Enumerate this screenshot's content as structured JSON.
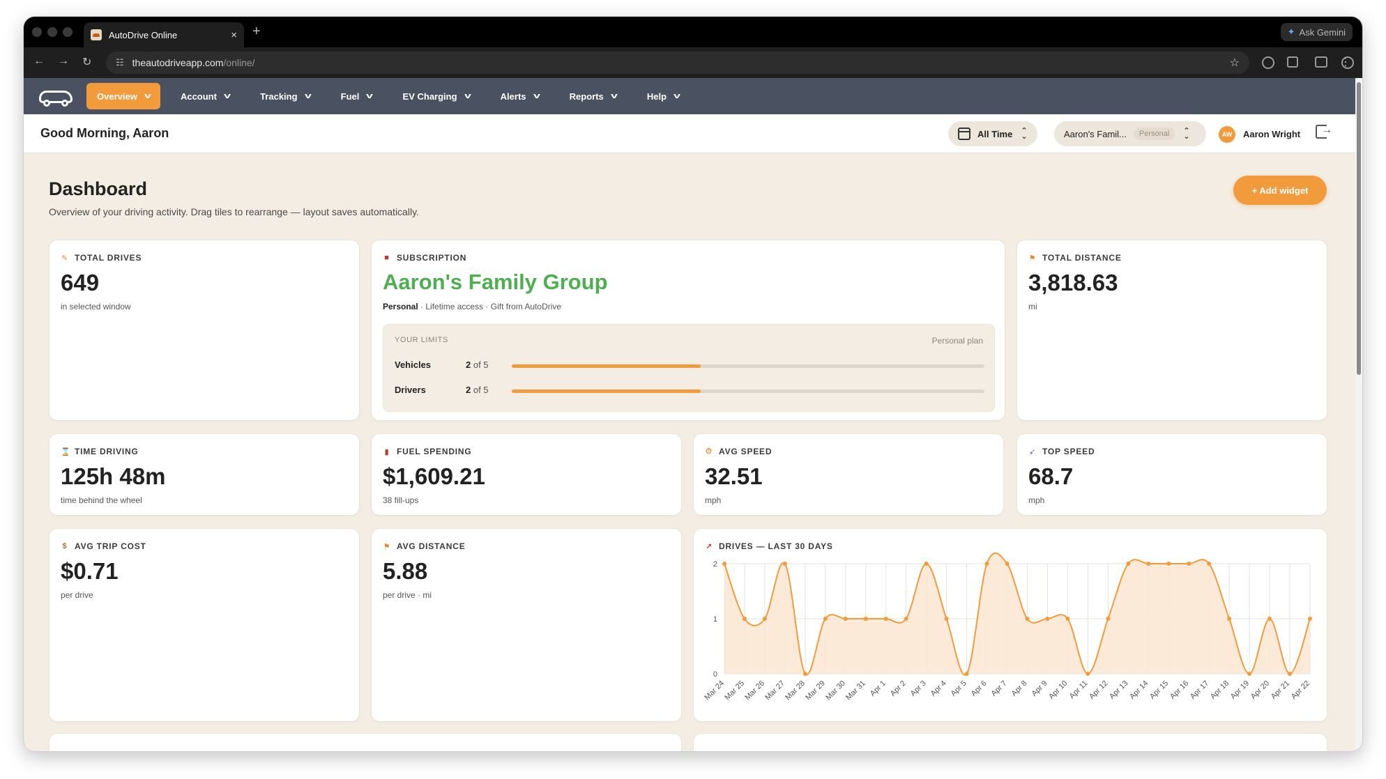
{
  "browser": {
    "tab_title": "AutoDrive Online",
    "tab_close": "×",
    "new_tab": "+",
    "gemini_label": "Ask Gemini",
    "url_host": "theautodriveapp.com",
    "url_path": "/online/"
  },
  "nav": {
    "items": [
      {
        "label": "Overview",
        "active": true
      },
      {
        "label": "Account"
      },
      {
        "label": "Tracking"
      },
      {
        "label": "Fuel"
      },
      {
        "label": "EV Charging"
      },
      {
        "label": "Alerts"
      },
      {
        "label": "Reports"
      },
      {
        "label": "Help"
      }
    ]
  },
  "header": {
    "greeting": "Good Morning, Aaron",
    "range": "All Time",
    "group": "Aaron's Famil...",
    "group_badge": "Personal",
    "avatar_initials": "AW",
    "user_name": "Aaron Wright"
  },
  "page": {
    "title": "Dashboard",
    "description": "Overview of your driving activity. Drag tiles to rearrange — layout saves automatically.",
    "add_widget": "+ Add widget"
  },
  "cards": {
    "total_drives": {
      "label": "TOTAL DRIVES",
      "icon": "🚗",
      "value": "649",
      "sub": "in selected window"
    },
    "subscription": {
      "label": "SUBSCRIPTION",
      "icon": "🎁",
      "name": "Aaron's Family Group",
      "plan": "Personal",
      "detail": " · Lifetime access · Gift from AutoDrive",
      "limits_heading": "YOUR LIMITS",
      "limits_plan": "Personal plan",
      "limits": [
        {
          "name": "Vehicles",
          "used": "2",
          "of_text": " of 5",
          "fraction": 0.4
        },
        {
          "name": "Drivers",
          "used": "2",
          "of_text": " of 5",
          "fraction": 0.4
        }
      ]
    },
    "total_distance": {
      "label": "TOTAL DISTANCE",
      "icon": "⚑",
      "value": "3,818.63",
      "sub": "mi"
    },
    "time_driving": {
      "label": "TIME DRIVING",
      "icon": "⌛",
      "value": "125h 48m",
      "sub": "time behind the wheel"
    },
    "fuel_spending": {
      "label": "FUEL SPENDING",
      "icon": "⛽",
      "value": "$1,609.21",
      "sub": "38 fill-ups"
    },
    "avg_speed": {
      "label": "AVG SPEED",
      "icon": "⏱",
      "value": "32.51",
      "sub": "mph"
    },
    "top_speed": {
      "label": "TOP SPEED",
      "icon": "🚀",
      "value": "68.7",
      "sub": "mph"
    },
    "avg_trip_cost": {
      "label": "AVG TRIP COST",
      "icon": "💰",
      "value": "$0.71",
      "sub": "per drive"
    },
    "avg_distance": {
      "label": "AVG DISTANCE",
      "icon": "⚑",
      "value": "5.88",
      "sub": "per drive · mi"
    },
    "drives_chart": {
      "label": "DRIVES — LAST 30 DAYS",
      "icon": "📈"
    }
  },
  "chart_data": {
    "type": "area",
    "title": "DRIVES — LAST 30 DAYS",
    "x": [
      "Mar 24",
      "Mar 25",
      "Mar 26",
      "Mar 27",
      "Mar 28",
      "Mar 29",
      "Mar 30",
      "Mar 31",
      "Apr 1",
      "Apr 2",
      "Apr 3",
      "Apr 4",
      "Apr 5",
      "Apr 6",
      "Apr 7",
      "Apr 8",
      "Apr 9",
      "Apr 10",
      "Apr 11",
      "Apr 12",
      "Apr 13",
      "Apr 14",
      "Apr 15",
      "Apr 16",
      "Apr 17",
      "Apr 18",
      "Apr 19",
      "Apr 20",
      "Apr 21",
      "Apr 22"
    ],
    "series": [
      {
        "values": [
          2,
          1,
          1,
          2,
          0,
          1,
          1,
          1,
          1,
          1,
          2,
          1,
          0,
          2,
          2,
          1,
          1,
          1,
          0,
          1,
          2,
          2,
          2,
          2,
          2,
          1,
          0,
          1,
          0,
          1
        ]
      }
    ],
    "yticks": [
      0,
      1,
      2
    ],
    "ylim": [
      0,
      2
    ],
    "grid": true,
    "colors": {
      "line": "#f29b3c",
      "fill": "#fbe8d4",
      "grid": "#e6e1d8"
    }
  },
  "colors": {
    "accent": "#f29b3c",
    "nav_bg": "#4a5160",
    "page_bg": "#f3ede3",
    "success": "#4caf50"
  }
}
